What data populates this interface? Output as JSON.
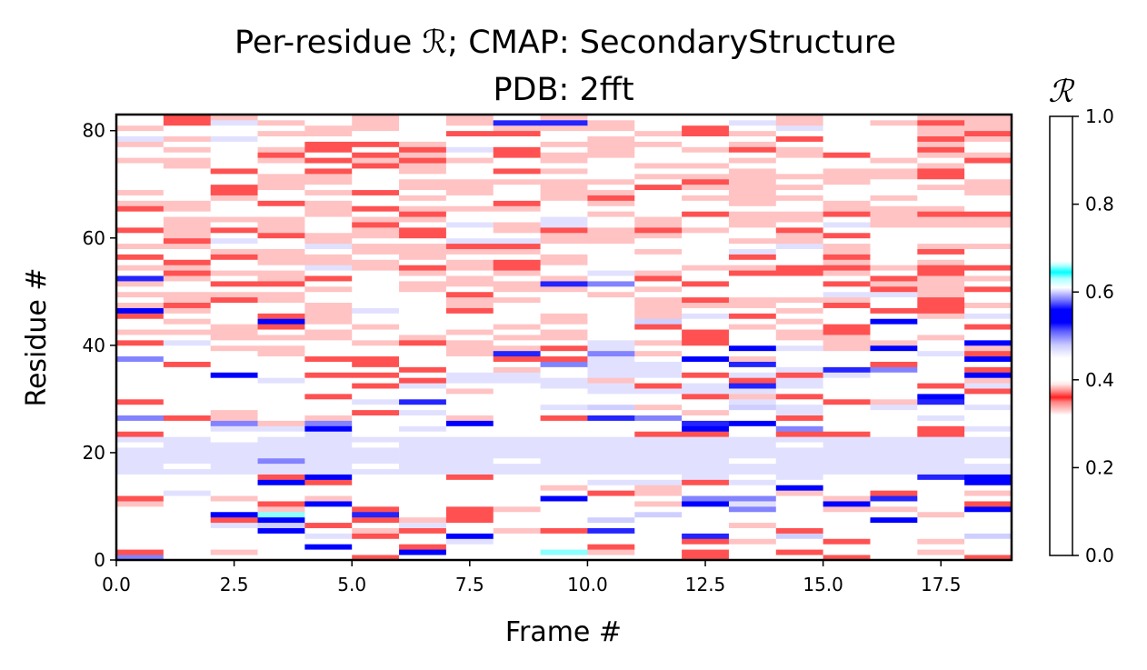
{
  "chart_data": {
    "type": "heatmap",
    "title_line1": "Per-residue ℛ; CMAP: SecondaryStructure",
    "title_line2": "PDB: 2fft",
    "xlabel": "Frame #",
    "ylabel": "Residue #",
    "xlim": [
      0,
      19
    ],
    "ylim": [
      0,
      83
    ],
    "n_frames": 19,
    "n_residues": 83,
    "x_ticks": [
      0.0,
      2.5,
      5.0,
      7.5,
      10.0,
      12.5,
      15.0,
      17.5
    ],
    "x_tick_labels": [
      "0.0",
      "2.5",
      "5.0",
      "7.5",
      "10.0",
      "12.5",
      "15.0",
      "17.5"
    ],
    "y_ticks": [
      0,
      20,
      40,
      60,
      80
    ],
    "y_tick_labels": [
      "0",
      "20",
      "40",
      "60",
      "80"
    ],
    "colorbar": {
      "label": "ℛ",
      "range": [
        0,
        1
      ],
      "ticks": [
        0.0,
        0.2,
        0.4,
        0.6,
        0.8,
        1.0
      ],
      "tick_labels": [
        "0.0",
        "0.2",
        "0.4",
        "0.6",
        "0.8",
        "1.0"
      ],
      "colormap": "SecondaryStructure",
      "stops": [
        {
          "v": 0.0,
          "c": "#ffffff"
        },
        {
          "v": 0.32,
          "c": "#ffffff"
        },
        {
          "v": 0.33,
          "c": "#ffd0d0"
        },
        {
          "v": 0.35,
          "c": "#ff8080"
        },
        {
          "v": 0.36,
          "c": "#ff2020"
        },
        {
          "v": 0.375,
          "c": "#ff9090"
        },
        {
          "v": 0.39,
          "c": "#ffe8e8"
        },
        {
          "v": 0.4,
          "c": "#ffffff"
        },
        {
          "v": 0.45,
          "c": "#ffffff"
        },
        {
          "v": 0.48,
          "c": "#c8c8ff"
        },
        {
          "v": 0.51,
          "c": "#6060ff"
        },
        {
          "v": 0.53,
          "c": "#0000ff"
        },
        {
          "v": 0.56,
          "c": "#0000ff"
        },
        {
          "v": 0.58,
          "c": "#7070ff"
        },
        {
          "v": 0.6,
          "c": "#d0d0ff"
        },
        {
          "v": 0.61,
          "c": "#ffffff"
        },
        {
          "v": 0.63,
          "c": "#b0ffff"
        },
        {
          "v": 0.645,
          "c": "#00ffff"
        },
        {
          "v": 0.66,
          "c": "#b0ffff"
        },
        {
          "v": 0.67,
          "c": "#ffffff"
        },
        {
          "v": 1.0,
          "c": "#ffffff"
        }
      ]
    },
    "values": [
      "O.L..KM...L.K.MK.IK",
      "K.JI.LP.LSJ.KIKMLJ.",
      ".LLMP.K.M.K.ML...L.",
      ".....M.NM...KJ.KMJM",
      "...MNKLP....Q.R.M.R",
      "...P.JK.JKQ.MMK.L..",
      "..NRK.N.L...MJL.M..",
      "..KP.KJK.MR.I..MP.M",
      "..PS.Q.K...RL...MJ.",
      "M.MJMK.KJ.MI.OIJJ.P",
      "J..KP.L.M..JPNMP..K",
      "KIJ.JL.L.P..OO.JQ..",
      ".N.L.MM.L.KJ..J.K.J",
      "..L.L.M.MJ.JM.P.ML.",
      "...PK....MNNKN...LP",
      "...KPL.K.L..N.NM.QP",
      "NNNNNNNNNNNNNNNNNNN",
      "NMNNNMNNNNNNNNNNNNN",
      "NNNONNNNMNNNNMNNNNM",
      "NNNNNNNNNNNNNNNNNNN",
      "NNNNNNNNNNNNNNNNNNN",
      "MNNNNMNNNNNNNNMNNNN",
      "NNMNNNNNNNNNNNNNNNN",
      "K..MNL..M.LKK.KKLK.",
      "..NNP.NM..LMP.OMMKN",
      ".LOJO.LP.M.MQPL..LM",
      "OKJLJM.JLKQO..K.LN.",
      "..JL.KN...L.J.N.M.M",
      "..M...L..NRJLRNMNMN",
      "K.ML.NQ...MM.N.KJQM",
      ".M.MK.MLL.M.KJK..P.",
      "...LM..J.MNNNN.L..K",
      ".....KN..NNKNQNM.KN",
      "...N..KNNNJ..KN.MLJ",
      "..PLKK.NN.NNKNKN.MP",
      "..M.L.K.J.NN..NQOLK",
      "LK..LK.LLONNLQM.K.L",
      "O.L.KKLLKKN.PJ....P",
      "ML.JMLLJQ.OJLL..LNK",
      "..JJ.L.JJKN..PNJP.J",
      "KNM..JKJ.MNJK..JJ.P",
      "L.JJJ.JMJJ..K.JJ.JL",
      "JJJLJ.LJMJ..KLJK..L",
      "MLJKMJ.MJ.LKLJLKLMK",
      "LJ.PJ...MJMRLLJMP.L",
      "K.LKJLMLMJLJNKLMLJN",
      "PJ..JN.K..LJMMJMKK.",
      "JK..JMMJM.LJJJ.K.KJ",
      "MJKJ...JJLMJKJJJ.K.",
      "JJJJ.M.K.MJM.LMNNJM",
      "...LJMJLJJ.JLMMMKJK",
      "J.KK..JJJQOMK..KJJ.",
      "QJ.JK.LJ.J.K...MKJJ",
      "MKJJ.MJMJ.NJLKKJLKM",
      "JJM.NJKJK.MLJJKKJKK",
      "LKMJJJMJKJ..L.LJMJL",
      "K.KJJ.JMLJ.LMKMKL.M",
      "MLJJ.JJJJ.LJMN.JLKM",
      "JJ..NJJKK.L..LNJ.JJ",
      ".KNLJ.MNNJJ.MJJ..MM",
      ".JMKJJKM.JJJ..JK..M",
      "KJKJMJKLJKJKJMKLMLL",
      "MJMJMKMNJNMJMJMNJJJ",
      "MJJJMJJMLNMJMJJMJJJ",
      "..LMJ.KLMLJ.KJJKJKK",
      "KJ.LJKJJJ.L.ML.JJJ.",
      "JJ.KJMLLKLJ.MJ.J.MM",
      "MMJ.MLJMLJK.JJJMJMM",
      "J.KMJKMJMJJ.MJMM.MJ",
      "..KJL.JJ.J.KJJJ..JJ",
      "M..JJ.JJJJJ.KJMJ.MJ",
      "...JJ...L.MJJJJJJKM",
      "..K.KMJMKJ..MJLJJKM",
      ".J.MLKJMLM.JJMM.MJM",
      "JJ.JKJKJMJLMMJ..J.K",
      "..LKMKJ.KJJ.MMJKMJJ",
      "MJMJKLKNKMJ.JKJ.MKL",
      "J.MMKKJMLJJJMJLLMJM",
      "NJNMLLMLLMJMM.KLMKJ",
      ".M.JJ.MKK..JKJL..JK",
      "J..MJJLMJJJ.KMNLMJJ",
      "MKNJMJMJQQJ.MNJMJKJ",
      "MKJ.MJ.J.JL.M.JM.JJ"
    ],
    "value_code_scale": {
      "start_char": "I",
      "start_value": 0.3,
      "step": 0.0333
    }
  }
}
